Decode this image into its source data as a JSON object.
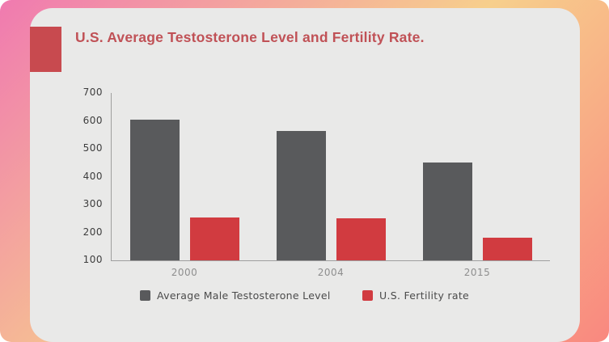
{
  "chart_data": {
    "type": "bar",
    "title": "U.S. Average Testosterone Level and Fertility Rate.",
    "categories": [
      "2000",
      "2004",
      "2015"
    ],
    "series": [
      {
        "name": "Average Male Testosterone Level",
        "color": "#595a5c",
        "values": [
          605,
          565,
          450
        ]
      },
      {
        "name": "U.S. Fertility rate",
        "color": "#d13b40",
        "values": [
          255,
          250,
          180
        ]
      }
    ],
    "xlabel": "",
    "ylabel": "",
    "ylim": [
      100,
      700
    ],
    "yticks": [
      100,
      200,
      300,
      400,
      500,
      600,
      700
    ],
    "grid": false,
    "legend_position": "bottom"
  },
  "theme": {
    "background_gradient_start": "#f07ab0",
    "background_gradient_mid": "#f7cf8c",
    "background_gradient_end": "#f9887f",
    "card_color": "#e9e9e8",
    "accent_color": "#c84a4f",
    "title_color": "#c05156",
    "axis_color": "#9e9e9e"
  }
}
